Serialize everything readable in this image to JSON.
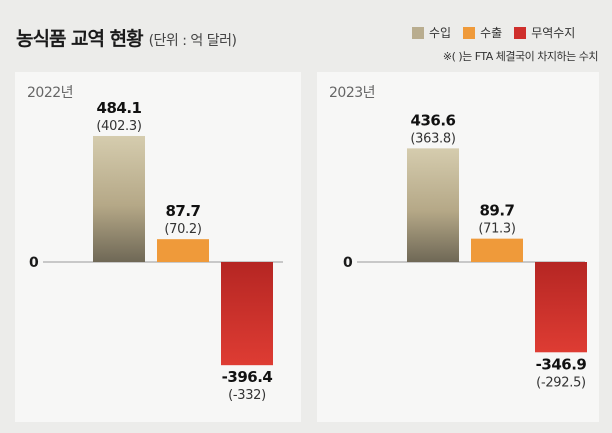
{
  "title": "농식품 교역 현황",
  "unit": "(단위 : 억 달러)",
  "note": "※( )는 FTA 체결국이 차지하는 수치",
  "colors": {
    "import": "#b9ad8f",
    "export": "#ef9a3a",
    "balance": "#cf2f2c"
  },
  "legend": [
    {
      "label": "수입",
      "color": "#b9ad8f"
    },
    {
      "label": "수출",
      "color": "#ef9a3a"
    },
    {
      "label": "무역수지",
      "color": "#cf2f2c"
    }
  ],
  "chart_data": [
    {
      "type": "bar",
      "title": "2022년",
      "zero_label": "0",
      "categories": [
        "수입",
        "수출",
        "무역수지"
      ],
      "values": [
        484.1,
        87.7,
        -396.4
      ],
      "value_labels": [
        "484.1",
        "87.7",
        "-396.4"
      ],
      "fta_values": [
        402.3,
        70.2,
        -332
      ],
      "fta_labels": [
        "(402.3)",
        "(70.2)",
        "(-332)"
      ]
    },
    {
      "type": "bar",
      "title": "2023년",
      "zero_label": "0",
      "categories": [
        "수입",
        "수출",
        "무역수지"
      ],
      "values": [
        436.6,
        89.7,
        -346.9
      ],
      "value_labels": [
        "436.6",
        "89.7",
        "-346.9"
      ],
      "fta_values": [
        363.8,
        71.3,
        -292.5
      ],
      "fta_labels": [
        "(363.8)",
        "(71.3)",
        "(-292.5)"
      ]
    }
  ]
}
